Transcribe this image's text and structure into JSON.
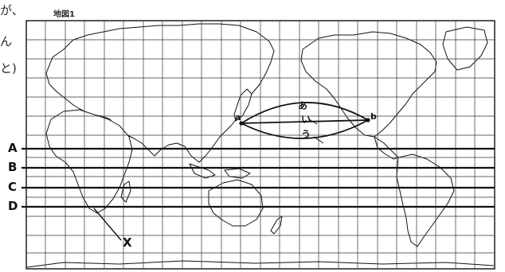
{
  "side_text": [
    "が、",
    "ん",
    "と)"
  ],
  "map_title": "地図1",
  "latitude_lines": [
    {
      "label": "A"
    },
    {
      "label": "B"
    },
    {
      "label": "C"
    },
    {
      "label": "D"
    }
  ],
  "route_labels": {
    "top": "あ",
    "middle": "い",
    "bottom": "う"
  },
  "points": {
    "start": "a",
    "end": "b"
  },
  "marker": "X",
  "colors": {
    "ink": "#111111",
    "grid": "#333333",
    "land": "#ffffff",
    "sea": "#ffffff"
  }
}
